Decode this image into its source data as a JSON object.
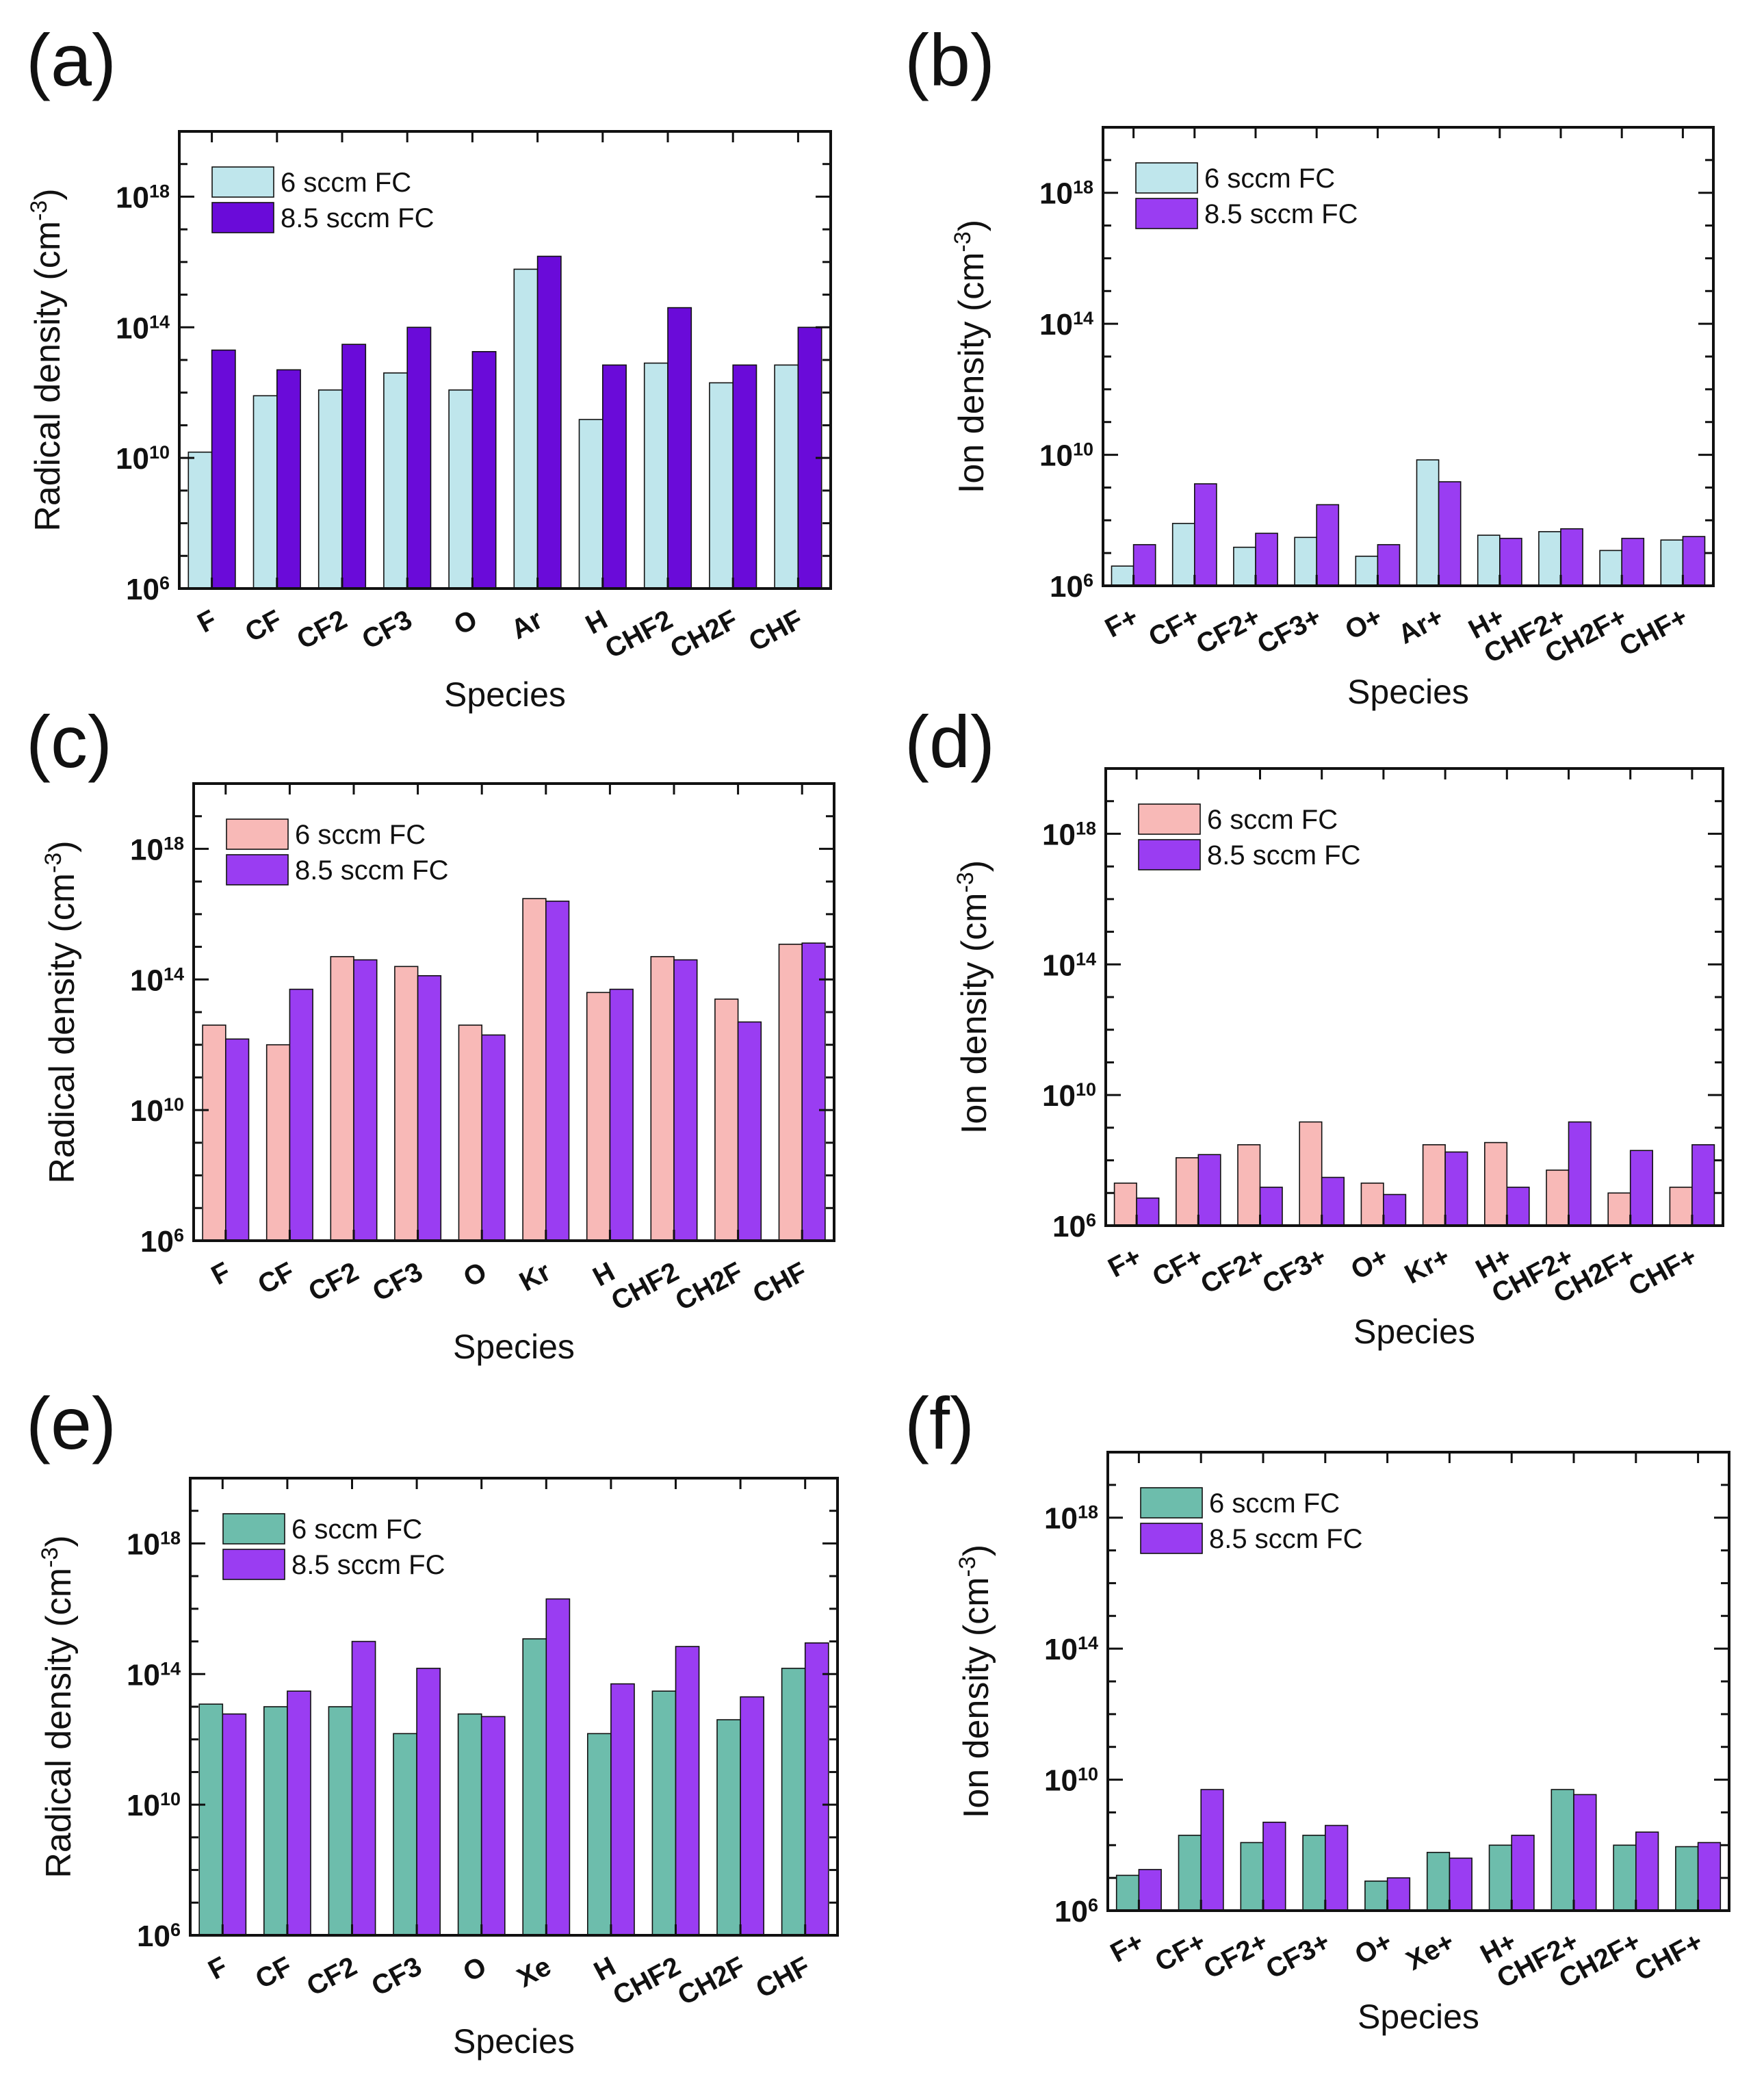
{
  "figure": {
    "legend_labels": [
      "6 sccm FC",
      "8.5 sccm FC"
    ],
    "colors": {
      "cyan": "#bfe6ec",
      "pink": "#f8b9b7",
      "teal": "#6dbdac",
      "purple_dark": "#6a0bd9",
      "purple": "#9a3df2",
      "axis": "#111111"
    }
  },
  "chart_data": [
    {
      "panel": "(a)",
      "type": "bar",
      "scale": "log",
      "ylim": [
        1000000.0,
        1e+20
      ],
      "yticks": [
        {
          "exp": 6,
          "label": "10^6"
        },
        {
          "exp": 10,
          "label": "10^10"
        },
        {
          "exp": 14,
          "label": "10^14"
        },
        {
          "exp": 18,
          "label": "10^18"
        }
      ],
      "ylabel": "Radical density (cm^-3)",
      "xlabel": "Species",
      "categories": [
        "F",
        "CF",
        "CF2",
        "CF3",
        "O",
        "Ar",
        "H",
        "CHF2",
        "CH2F",
        "CHF"
      ],
      "series": [
        {
          "name": "6 sccm FC",
          "color": "#bfe6ec",
          "values": [
            15000000000.0,
            800000000000.0,
            1200000000000.0,
            4000000000000.0,
            1200000000000.0,
            6000000000000000.0,
            150000000000.0,
            8000000000000.0,
            2000000000000.0,
            7000000000000.0
          ]
        },
        {
          "name": "8.5 sccm FC",
          "color": "#6a0bd9",
          "values": [
            20000000000000.0,
            5000000000000.0,
            30000000000000.0,
            100000000000000.0,
            18000000000000.0,
            1.5e+16,
            7000000000000.0,
            400000000000000.0,
            7000000000000.0,
            100000000000000.0
          ]
        }
      ]
    },
    {
      "panel": "(b)",
      "type": "bar",
      "scale": "log",
      "ylim": [
        1000000.0,
        1e+20
      ],
      "yticks": [
        {
          "exp": 6,
          "label": "10^6"
        },
        {
          "exp": 10,
          "label": "10^10"
        },
        {
          "exp": 14,
          "label": "10^14"
        },
        {
          "exp": 18,
          "label": "10^18"
        }
      ],
      "ylabel": "Ion density (cm^-3)",
      "xlabel": "Species",
      "categories": [
        "F+",
        "CF+",
        "CF2+",
        "CF3+",
        "O+",
        "Ar+",
        "H+",
        "CHF2+",
        "CH2F+",
        "CHF+"
      ],
      "series": [
        {
          "name": "6 sccm FC",
          "color": "#bfe6ec",
          "values": [
            4000000.0,
            80000000.0,
            15000000.0,
            30000000.0,
            8000000.0,
            7000000000.0,
            35000000.0,
            45000000.0,
            12000000.0,
            25000000.0
          ]
        },
        {
          "name": "8.5 sccm FC",
          "color": "#9a3df2",
          "values": [
            18000000.0,
            1300000000.0,
            40000000.0,
            300000000.0,
            18000000.0,
            1500000000.0,
            28000000.0,
            55000000.0,
            28000000.0,
            32000000.0
          ]
        }
      ]
    },
    {
      "panel": "(c)",
      "type": "bar",
      "scale": "log",
      "ylim": [
        1000000.0,
        1e+20
      ],
      "yticks": [
        {
          "exp": 6,
          "label": "10^6"
        },
        {
          "exp": 10,
          "label": "10^10"
        },
        {
          "exp": 14,
          "label": "10^14"
        },
        {
          "exp": 18,
          "label": "10^18"
        }
      ],
      "ylabel": "Radical density (cm^-3)",
      "xlabel": "Species",
      "categories": [
        "F",
        "CF",
        "CF2",
        "CF3",
        "O",
        "Kr",
        "H",
        "CHF2",
        "CH2F",
        "CHF"
      ],
      "series": [
        {
          "name": "6 sccm FC",
          "color": "#f8b9b7",
          "values": [
            4000000000000.0,
            1000000000000.0,
            500000000000000.0,
            250000000000000.0,
            4000000000000.0,
            3e+16,
            40000000000000.0,
            500000000000000.0,
            25000000000000.0,
            1200000000000000.0
          ]
        },
        {
          "name": "8.5 sccm FC",
          "color": "#9a3df2",
          "values": [
            1500000000000.0,
            50000000000000.0,
            400000000000000.0,
            130000000000000.0,
            2000000000000.0,
            2.5e+16,
            50000000000000.0,
            400000000000000.0,
            5000000000000.0,
            1300000000000000.0
          ]
        }
      ]
    },
    {
      "panel": "(d)",
      "type": "bar",
      "scale": "log",
      "ylim": [
        1000000.0,
        1e+20
      ],
      "yticks": [
        {
          "exp": 6,
          "label": "10^6"
        },
        {
          "exp": 10,
          "label": "10^10"
        },
        {
          "exp": 14,
          "label": "10^14"
        },
        {
          "exp": 18,
          "label": "10^18"
        }
      ],
      "ylabel": "Ion density (cm^-3)",
      "xlabel": "Species",
      "categories": [
        "F+",
        "CF+",
        "CF2+",
        "CF3+",
        "O+",
        "Kr+",
        "H+",
        "CHF2+",
        "CH2F+",
        "CHF+"
      ],
      "series": [
        {
          "name": "6 sccm FC",
          "color": "#f8b9b7",
          "values": [
            20000000.0,
            120000000.0,
            300000000.0,
            1500000000.0,
            20000000.0,
            300000000.0,
            350000000.0,
            50000000.0,
            10000000.0,
            15000000.0
          ]
        },
        {
          "name": "8.5 sccm FC",
          "color": "#9a3df2",
          "values": [
            7000000.0,
            150000000.0,
            15000000.0,
            30000000.0,
            9000000.0,
            180000000.0,
            15000000.0,
            1500000000.0,
            200000000.0,
            300000000.0
          ]
        }
      ]
    },
    {
      "panel": "(e)",
      "type": "bar",
      "scale": "log",
      "ylim": [
        1000000.0,
        1e+20
      ],
      "yticks": [
        {
          "exp": 6,
          "label": "10^6"
        },
        {
          "exp": 10,
          "label": "10^10"
        },
        {
          "exp": 14,
          "label": "10^14"
        },
        {
          "exp": 18,
          "label": "10^18"
        }
      ],
      "ylabel": "Radical density (cm^-3)",
      "xlabel": "Species",
      "categories": [
        "F",
        "CF",
        "CF2",
        "CF3",
        "O",
        "Xe",
        "H",
        "CHF2",
        "CH2F",
        "CHF"
      ],
      "series": [
        {
          "name": "6 sccm FC",
          "color": "#6dbdac",
          "values": [
            12000000000000.0,
            10000000000000.0,
            10000000000000.0,
            1500000000000.0,
            6000000000000.0,
            1200000000000000.0,
            1500000000000.0,
            30000000000000.0,
            4000000000000.0,
            150000000000000.0
          ]
        },
        {
          "name": "8.5 sccm FC",
          "color": "#9a3df2",
          "values": [
            6000000000000.0,
            30000000000000.0,
            1000000000000000.0,
            150000000000000.0,
            5000000000000.0,
            2e+16,
            50000000000000.0,
            700000000000000.0,
            20000000000000.0,
            900000000000000.0
          ]
        }
      ]
    },
    {
      "panel": "(f)",
      "type": "bar",
      "scale": "log",
      "ylim": [
        1000000.0,
        1e+20
      ],
      "yticks": [
        {
          "exp": 6,
          "label": "10^6"
        },
        {
          "exp": 10,
          "label": "10^10"
        },
        {
          "exp": 14,
          "label": "10^14"
        },
        {
          "exp": 18,
          "label": "10^18"
        }
      ],
      "ylabel": "Ion density (cm^-3)",
      "xlabel": "Species",
      "categories": [
        "F+",
        "CF+",
        "CF2+",
        "CF3+",
        "O+",
        "Xe+",
        "H+",
        "CHF2+",
        "CH2F+",
        "CHF+"
      ],
      "series": [
        {
          "name": "6 sccm FC",
          "color": "#6dbdac",
          "values": [
            12000000.0,
            200000000.0,
            120000000.0,
            200000000.0,
            8000000.0,
            60000000.0,
            100000000.0,
            5000000000.0,
            100000000.0,
            90000000.0
          ]
        },
        {
          "name": "8.5 sccm FC",
          "color": "#9a3df2",
          "values": [
            18000000.0,
            5000000000.0,
            500000000.0,
            400000000.0,
            10000000.0,
            40000000.0,
            200000000.0,
            3500000000.0,
            250000000.0,
            120000000.0
          ]
        }
      ]
    }
  ]
}
